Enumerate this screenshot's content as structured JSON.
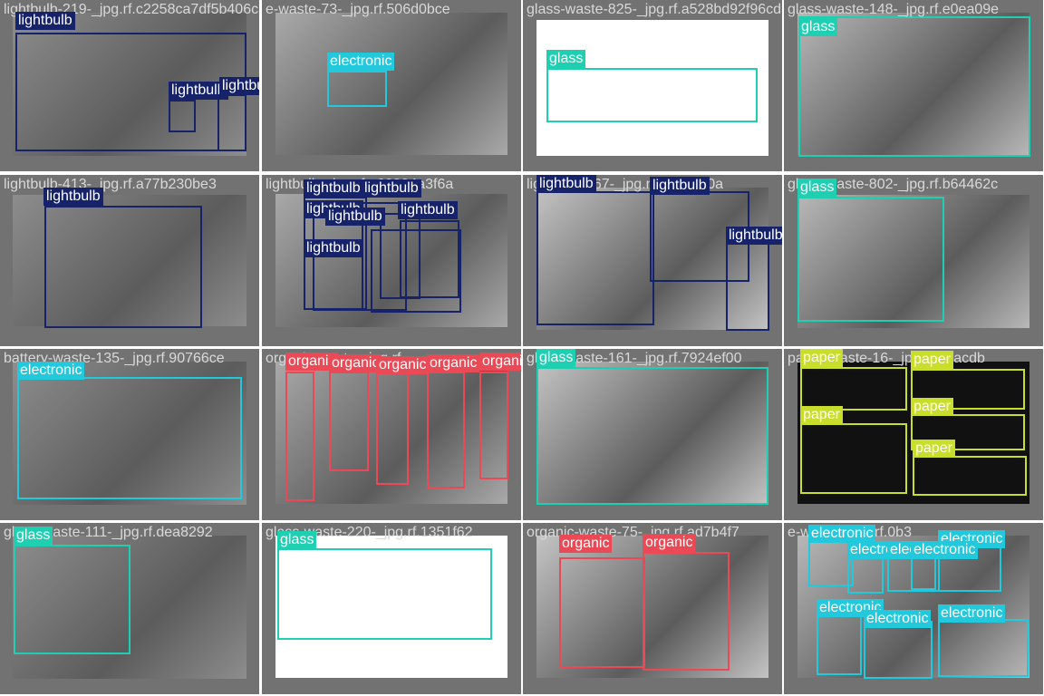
{
  "colors": {
    "lightbulb": "#16226a",
    "electronic": "#22c8dc",
    "glass": "#1fcfb2",
    "organic": "#ea4a55",
    "paper": "#c9de2a",
    "cell_background": "#727272"
  },
  "cells": [
    {
      "filename": "lightbulb-219-_jpg.rf.c2258ca7df5b406c3d",
      "detections": [
        {
          "label": "lightbulb",
          "cls": "lightbulb"
        },
        {
          "label": "lightbulb",
          "cls": "lightbulb"
        },
        {
          "label": "lightbulb",
          "cls": "lightbulb"
        }
      ]
    },
    {
      "filename": "e-waste-73-_jpg.rf.506d0bce",
      "detections": [
        {
          "label": "electronic",
          "cls": "electronic"
        }
      ]
    },
    {
      "filename": "glass-waste-825-_jpg.rf.a528bd92f96cd9",
      "detections": [
        {
          "label": "glass",
          "cls": "glass"
        }
      ]
    },
    {
      "filename": "glass-waste-148-_jpg.rf.e0ea09e",
      "detections": [
        {
          "label": "glass",
          "cls": "glass"
        }
      ]
    },
    {
      "filename": "lightbulb-413-_jpg.rf.a77b230be3",
      "detections": [
        {
          "label": "lightbulb",
          "cls": "lightbulb"
        }
      ]
    },
    {
      "filename": "lightbulb-_jpg.rf.a62394a3f6a",
      "detections": [
        {
          "label": "lightbulb",
          "cls": "lightbulb"
        },
        {
          "label": "lightbulb",
          "cls": "lightbulb"
        },
        {
          "label": "lightbulb",
          "cls": "lightbulb"
        },
        {
          "label": "lightbulb",
          "cls": "lightbulb"
        },
        {
          "label": "lightbulb",
          "cls": "lightbulb"
        },
        {
          "label": "lightbulb",
          "cls": "lightbulb"
        }
      ]
    },
    {
      "filename": "lightbulb-467-_jpg.rf.3b00900a",
      "detections": [
        {
          "label": "lightbulb",
          "cls": "lightbulb"
        },
        {
          "label": "lightbulb",
          "cls": "lightbulb"
        },
        {
          "label": "lightbulb",
          "cls": "lightbulb"
        }
      ]
    },
    {
      "filename": "glass-waste-802-_jpg.rf.b64462c",
      "detections": [
        {
          "label": "glass",
          "cls": "glass"
        }
      ]
    },
    {
      "filename": "battery-waste-135-_jpg.rf.90766ce",
      "detections": [
        {
          "label": "electronic",
          "cls": "electronic"
        }
      ]
    },
    {
      "filename": "organic-waste-_jpg.rf",
      "detections": [
        {
          "label": "organic",
          "cls": "organic"
        },
        {
          "label": "organic",
          "cls": "organic"
        },
        {
          "label": "organic",
          "cls": "organic"
        },
        {
          "label": "organic",
          "cls": "organic"
        },
        {
          "label": "organic",
          "cls": "organic"
        }
      ]
    },
    {
      "filename": "glass-waste-161-_jpg.rf.7924ef00",
      "detections": [
        {
          "label": "glass",
          "cls": "glass"
        }
      ]
    },
    {
      "filename": "paper-waste-16-_jpg.rf.78acdb",
      "detections": [
        {
          "label": "paper",
          "cls": "paper"
        },
        {
          "label": "paper",
          "cls": "paper"
        },
        {
          "label": "paper",
          "cls": "paper"
        },
        {
          "label": "paper",
          "cls": "paper"
        },
        {
          "label": "paper",
          "cls": "paper"
        }
      ]
    },
    {
      "filename": "glass-waste-111-_jpg.rf.dea8292",
      "detections": [
        {
          "label": "glass",
          "cls": "glass"
        }
      ]
    },
    {
      "filename": "glass-waste-220-_jpg.rf.1351f62",
      "detections": [
        {
          "label": "glass",
          "cls": "glass"
        }
      ]
    },
    {
      "filename": "organic-waste-75-_jpg.rf.ad7b4f7",
      "detections": [
        {
          "label": "organic",
          "cls": "organic"
        },
        {
          "label": "organic",
          "cls": "organic"
        }
      ]
    },
    {
      "filename": "e-waste-_jpg.rf.0b3",
      "detections": [
        {
          "label": "electronic",
          "cls": "electronic"
        },
        {
          "label": "electronic",
          "cls": "electronic"
        },
        {
          "label": "electronic",
          "cls": "electronic"
        },
        {
          "label": "electronic",
          "cls": "electronic"
        },
        {
          "label": "electronic",
          "cls": "electronic"
        },
        {
          "label": "electronic",
          "cls": "electronic"
        },
        {
          "label": "electronic",
          "cls": "electronic"
        },
        {
          "label": "electronic",
          "cls": "electronic"
        }
      ]
    }
  ]
}
